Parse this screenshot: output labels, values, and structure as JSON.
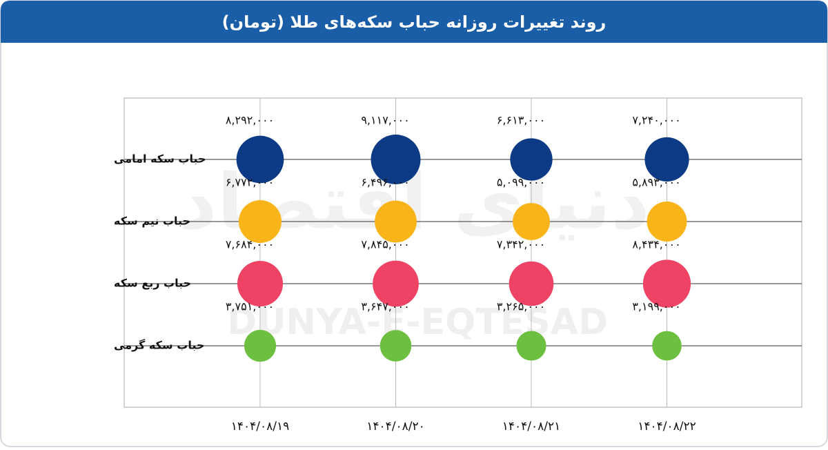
{
  "chart_data": {
    "type": "bubble",
    "title": "روند تغییرات روزانه حباب سکه‌های طلا (تومان)",
    "watermark": [
      "دنیای اقتصاد",
      "DUNYA-E-EQTESAD"
    ],
    "categories": [
      "۱۴۰۴/۰۸/۱۹",
      "۱۴۰۴/۰۸/۲۰",
      "۱۴۰۴/۰۸/۲۱",
      "۱۴۰۴/۰۸/۲۲"
    ],
    "series": [
      {
        "name": "حباب سکه امامی",
        "color": "#0d3a84",
        "values": [
          8292000,
          9117000,
          6613000,
          7240000
        ],
        "value_labels": [
          "۸,۲۹۲,۰۰۰",
          "۹,۱۱۷,۰۰۰",
          "۶,۶۱۳,۰۰۰",
          "۷,۲۴۰,۰۰۰"
        ]
      },
      {
        "name": "حباب نیم سکه",
        "color": "#f8b418",
        "values": [
          6772000,
          6496000,
          5099000,
          5893000
        ],
        "value_labels": [
          "۶,۷۷۲,۰۰۰",
          "۶,۴۹۶,۰۰۰",
          "۵,۰۹۹,۰۰۰",
          "۵,۸۹۳,۰۰۰"
        ]
      },
      {
        "name": "حباب ربع سکه",
        "color": "#ee4364",
        "values": [
          7684000,
          7845000,
          7342000,
          8434000
        ],
        "value_labels": [
          "۷,۶۸۴,۰۰۰",
          "۷,۸۴۵,۰۰۰",
          "۷,۳۴۲,۰۰۰",
          "۸,۴۳۴,۰۰۰"
        ]
      },
      {
        "name": "حباب سکه گرمی",
        "color": "#6cbf3f",
        "values": [
          3751000,
          3647000,
          3265000,
          3199000
        ],
        "value_labels": [
          "۳,۷۵۱,۰۰۰",
          "۳,۶۴۷,۰۰۰",
          "۳,۲۶۵,۰۰۰",
          "۳,۱۹۹,۰۰۰"
        ]
      }
    ]
  }
}
